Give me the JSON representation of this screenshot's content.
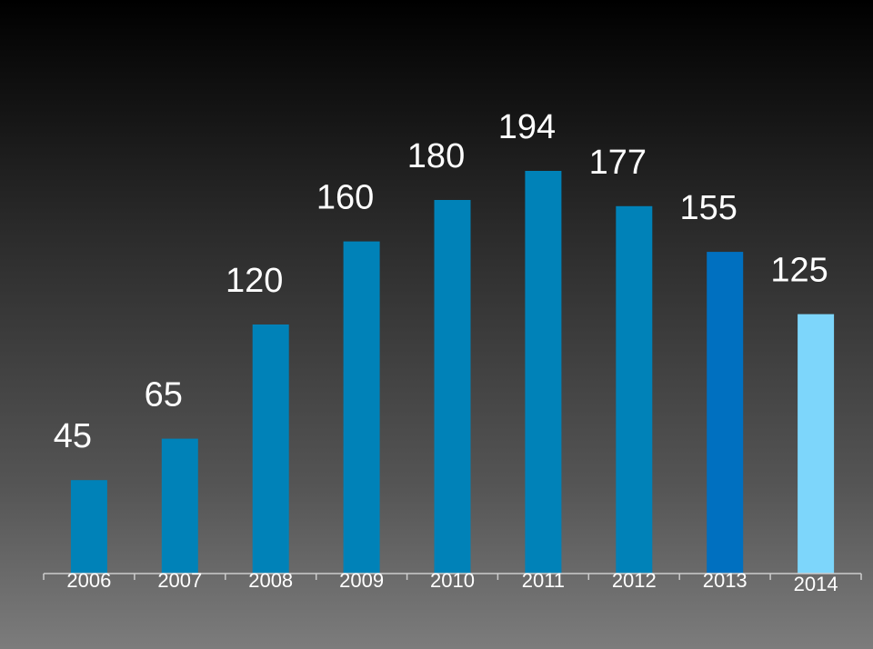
{
  "chart_data": {
    "type": "bar",
    "categories": [
      "2006",
      "2007",
      "2008",
      "2009",
      "2010",
      "2011",
      "2012",
      "2013",
      "2014"
    ],
    "values": [
      45,
      65,
      120,
      160,
      180,
      194,
      177,
      155,
      125
    ],
    "title": "",
    "xlabel": "",
    "ylabel": "",
    "ylim": [
      0,
      194
    ],
    "grid": false,
    "legend": "none",
    "colors": {
      "default_bar": "#0082b8",
      "highlight_2013": "#0070c0",
      "highlight_2014": "#7dd6fb",
      "text": "#ffffff",
      "axis": "#cccccc"
    },
    "bar_colors": [
      "#0082b8",
      "#0082b8",
      "#0082b8",
      "#0082b8",
      "#0082b8",
      "#0082b8",
      "#0082b8",
      "#0070c0",
      "#7dd6fb"
    ]
  }
}
